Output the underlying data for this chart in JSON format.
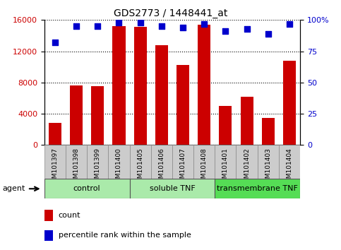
{
  "title": "GDS2773 / 1448441_at",
  "samples": [
    "GSM101397",
    "GSM101398",
    "GSM101399",
    "GSM101400",
    "GSM101405",
    "GSM101406",
    "GSM101407",
    "GSM101408",
    "GSM101401",
    "GSM101402",
    "GSM101403",
    "GSM101404"
  ],
  "counts": [
    2800,
    7600,
    7500,
    15200,
    15100,
    12800,
    10200,
    15400,
    5000,
    6200,
    3500,
    10800
  ],
  "percentiles": [
    82,
    95,
    95,
    98,
    98,
    95,
    94,
    97,
    91,
    93,
    89,
    97
  ],
  "ylim_left": [
    0,
    16000
  ],
  "ylim_right": [
    0,
    100
  ],
  "yticks_left": [
    0,
    4000,
    8000,
    12000,
    16000
  ],
  "yticks_right": [
    0,
    25,
    50,
    75,
    100
  ],
  "bar_color": "#cc0000",
  "dot_color": "#0000cc",
  "groups": [
    {
      "label": "control",
      "start": 0,
      "end": 4,
      "color": "#aaeaaa"
    },
    {
      "label": "soluble TNF",
      "start": 4,
      "end": 8,
      "color": "#aaeaaa"
    },
    {
      "label": "transmembrane TNF",
      "start": 8,
      "end": 12,
      "color": "#55dd55"
    }
  ],
  "legend_items": [
    {
      "label": "count",
      "color": "#cc0000"
    },
    {
      "label": "percentile rank within the sample",
      "color": "#0000cc"
    }
  ],
  "agent_label": "agent",
  "tick_label_color_left": "#cc0000",
  "tick_label_color_right": "#0000cc"
}
